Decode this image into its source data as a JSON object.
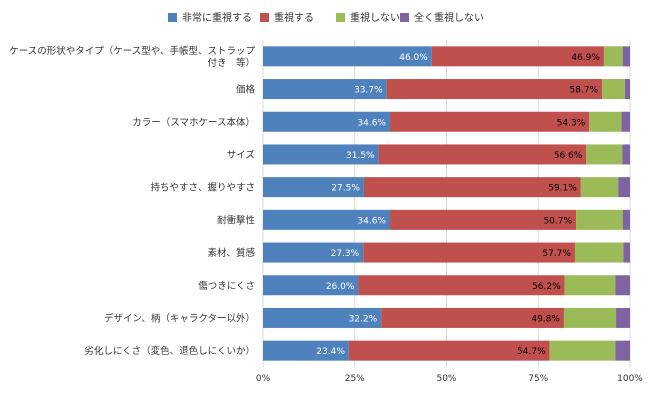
{
  "chart_data": {
    "type": "bar",
    "orientation": "horizontal",
    "stacked": "percent",
    "categories": [
      [
        "ケースの形状やタイプ（ケース型や、手帳型、ストラップ",
        "付き　等）"
      ],
      [
        "価格"
      ],
      [
        "カラー（スマホケース本体）"
      ],
      [
        "サイズ"
      ],
      [
        "持ちやすさ、握りやすさ"
      ],
      [
        "耐衝撃性"
      ],
      [
        "素材、質感"
      ],
      [
        "傷つきにくさ"
      ],
      [
        "デザイン、柄（キャラクター以外）"
      ],
      [
        "劣化しにくさ（変色、退色しにくいか）"
      ]
    ],
    "series": [
      {
        "name": "非常に重視する",
        "color": "#4f81bd",
        "label_color": "#ffffff",
        "values": [
          46.0,
          33.7,
          34.6,
          31.5,
          27.5,
          34.6,
          27.3,
          26.0,
          32.2,
          23.4
        ],
        "labels": [
          "46.0%",
          "33.7%",
          "34.6%",
          "31.5%",
          "27.5%",
          "34.6%",
          "27.3%",
          "26.0%",
          "32.2%",
          "23.4%"
        ]
      },
      {
        "name": "重視する",
        "color": "#c0504d",
        "label_color": "#000000",
        "values": [
          46.9,
          58.7,
          54.3,
          56.6,
          59.1,
          50.7,
          57.7,
          56.2,
          49.8,
          54.7
        ],
        "labels": [
          "46.9%",
          "58.7%",
          "54.3%",
          "56.6%",
          "59.1%",
          "50.7%",
          "57.7%",
          "56.2%",
          "49.8%",
          "54.7%"
        ]
      },
      {
        "name": "重視しない",
        "color": "#9bbb59",
        "values": [
          5.1,
          6.2,
          8.8,
          9.8,
          10.2,
          12.7,
          13.2,
          13.8,
          14.2,
          17.9
        ]
      },
      {
        "name": "全く重視しない",
        "color": "#8064a2",
        "values": [
          2.0,
          1.4,
          2.3,
          2.1,
          3.2,
          2.0,
          1.8,
          4.0,
          3.8,
          4.0
        ]
      }
    ],
    "xlim": [
      0,
      100
    ],
    "x_ticks": [
      "0%",
      "25%",
      "50%",
      "75%",
      "100%"
    ],
    "legend_position": "top",
    "grid": true
  }
}
